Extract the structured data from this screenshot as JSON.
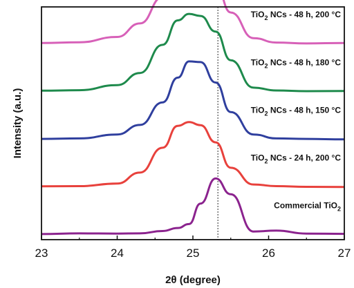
{
  "chart_data": {
    "type": "line",
    "xlabel": "2θ (degree)",
    "ylabel": "Intensity (a.u.)",
    "xlim": [
      23,
      27
    ],
    "xticks": [
      23,
      24,
      25,
      26,
      27
    ],
    "reference_line_x": 25.33,
    "grid": false,
    "legend": "labels placed beside each curve",
    "x": [
      23.0,
      23.5,
      24.0,
      24.3,
      24.6,
      24.8,
      24.95,
      25.1,
      25.3,
      25.5,
      25.8,
      26.1,
      26.5,
      27.0
    ],
    "series": [
      {
        "name": "TiO2 NCs - 48 h, 200 °C",
        "label_parts": [
          "TiO",
          "2",
          " NCs - 48 h, 200 °C"
        ],
        "color": "#d760b8",
        "values": [
          0.01,
          0.013,
          0.036,
          0.094,
          0.207,
          0.302,
          0.334,
          0.326,
          0.26,
          0.141,
          0.031,
          0.012,
          0.008,
          0.01
        ]
      },
      {
        "name": "TiO2 NCs - 48 h, 180 °C",
        "label_parts": [
          "TiO",
          "2",
          " NCs - 48 h, 180 °C"
        ],
        "color": "#1e8a4c",
        "values": [
          0.01,
          0.012,
          0.034,
          0.086,
          0.207,
          0.312,
          0.34,
          0.331,
          0.264,
          0.141,
          0.023,
          0.011,
          0.008,
          0.009
        ]
      },
      {
        "name": "TiO2 NCs - 48 h, 150 °C",
        "label_parts": [
          "TiO",
          "2",
          " NCs - 48 h, 150 °C"
        ],
        "color": "#2f3f9e",
        "values": [
          0.008,
          0.01,
          0.027,
          0.068,
          0.165,
          0.271,
          0.341,
          0.338,
          0.25,
          0.123,
          0.027,
          0.01,
          0.008,
          0.006
        ]
      },
      {
        "name": "TiO2 NCs - 24 h, 200 °C",
        "label_parts": [
          "TiO",
          "2",
          " NCs - 24 h, 200 °C"
        ],
        "color": "#e8413c",
        "values": [
          0.009,
          0.01,
          0.021,
          0.068,
          0.175,
          0.269,
          0.285,
          0.272,
          0.198,
          0.089,
          0.017,
          0.01,
          0.007,
          0.006
        ]
      },
      {
        "name": "Commercial TiO2",
        "label_parts": [
          "Commercial TiO",
          "2",
          ""
        ],
        "color": "#8b238e",
        "values": [
          0.009,
          0.012,
          0.011,
          0.012,
          0.022,
          0.035,
          0.052,
          0.14,
          0.248,
          0.18,
          0.02,
          0.024,
          0.011,
          0.01
        ]
      }
    ]
  }
}
